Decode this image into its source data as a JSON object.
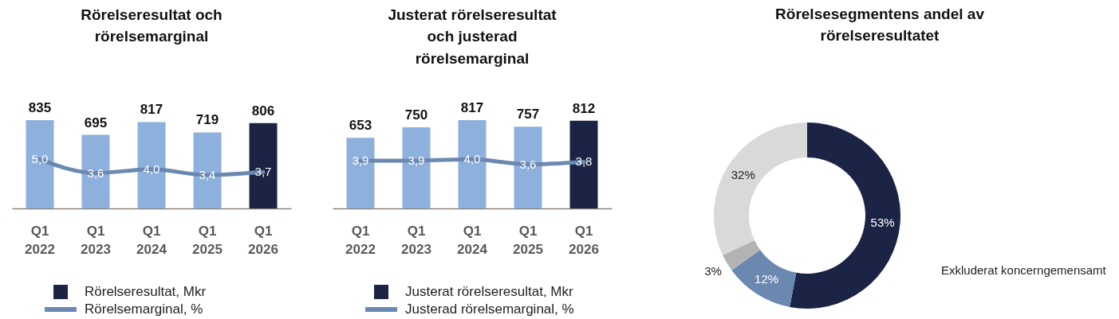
{
  "chart_data": [
    {
      "type": "bar",
      "title": "Rörelseresultat och rörelsemarginal",
      "categories": [
        "Q1 2022",
        "Q1 2023",
        "Q1 2024",
        "Q1 2025",
        "Q1 2026"
      ],
      "series": [
        {
          "name": "Rörelseresultat, Mkr",
          "type": "bar",
          "color": "#1b2444",
          "colors": [
            "#8eb0dc",
            "#8eb0dc",
            "#8eb0dc",
            "#8eb0dc",
            "#1b2444"
          ],
          "values": [
            835,
            695,
            817,
            719,
            806
          ],
          "value_labels": [
            "835",
            "695",
            "817",
            "719",
            "806"
          ]
        },
        {
          "name": "Rörelsemarginal, %",
          "type": "line",
          "axis": "y2",
          "color": "#6b88b1",
          "line_style": "solid",
          "values": [
            5.0,
            3.6,
            4.0,
            3.4,
            3.7
          ],
          "value_labels": [
            "5,0",
            "3,6",
            "4,0",
            "3,4",
            "3,7"
          ]
        }
      ],
      "tick_labels": "x",
      "grid": false,
      "legend": "bottom"
    },
    {
      "type": "bar",
      "title": "Justerat rörelseresultat och justerad rörelsemarginal",
      "categories": [
        "Q1 2022",
        "Q1 2023",
        "Q1 2024",
        "Q1 2025",
        "Q1 2026"
      ],
      "series": [
        {
          "name": "Justerat rörelseresultat, Mkr",
          "type": "bar",
          "color": "#1b2444",
          "colors": [
            "#8eb0dc",
            "#8eb0dc",
            "#8eb0dc",
            "#8eb0dc",
            "#1b2444"
          ],
          "values": [
            653,
            750,
            817,
            757,
            812
          ],
          "value_labels": [
            "653",
            "750",
            "817",
            "757",
            "812"
          ]
        },
        {
          "name": "Justerad rörelsemarginal, %",
          "type": "line",
          "axis": "y2",
          "color": "#6b88b1",
          "line_style": "solid",
          "values": [
            3.9,
            3.9,
            4.0,
            3.6,
            3.8
          ],
          "value_labels": [
            "3,9",
            "3,9",
            "4,0",
            "3,6",
            "3,8"
          ]
        }
      ],
      "tick_labels": "x",
      "grid": false,
      "legend": "bottom"
    },
    {
      "type": "donut",
      "title": "Rörelsesegmentens andel av rörelseresultatet",
      "categories": [
        null,
        null,
        null,
        null
      ],
      "values": [
        53,
        12,
        3,
        32
      ],
      "value_labels": [
        "53%",
        "12%",
        "3%",
        "32%"
      ],
      "colors": [
        "#1b2444",
        "#6b88b1",
        "#b3b3b3",
        "#d9d9d9"
      ],
      "annotations": [
        "Exkluderat koncerngemensamt"
      ]
    }
  ]
}
